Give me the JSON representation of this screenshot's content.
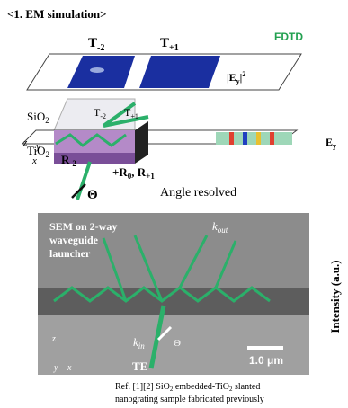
{
  "header": {
    "title": "<1. EM simulation>",
    "method": "FDTD"
  },
  "simulation": {
    "t_minus2": {
      "base": "T",
      "sub": "-2"
    },
    "t_plus1": {
      "base": "T",
      "sub": "+1"
    },
    "inner_t_minus2": {
      "base": "T",
      "sub": "-2"
    },
    "inner_t_plus1": {
      "base": "T",
      "sub": "+1"
    },
    "field_intensity": {
      "left": "|E",
      "sub": "y",
      "right": "|",
      "sup": "2"
    },
    "sio2": {
      "base": "SiO",
      "sub": "2"
    },
    "tio2": {
      "base": "TiO",
      "sub": "2"
    },
    "r_minus2": {
      "base": "R",
      "sub": "-2"
    },
    "r_out": {
      "base1": "+R",
      "sub1": "0",
      "mid": ", R",
      "sub2": "+1"
    },
    "theta": "Θ",
    "angle_note": "Angle resolved",
    "ey_label": {
      "base": "E",
      "sub": "y"
    },
    "axes": {
      "z": "z",
      "y": "y",
      "x": "x"
    }
  },
  "sem": {
    "caption": [
      "SEM on 2-way",
      "waveguide",
      "launcher"
    ],
    "k_out": {
      "base": "k",
      "sub": "out"
    },
    "k_in": {
      "base": "k",
      "sub": "in"
    },
    "theta": "Θ",
    "polarization": "TE",
    "scale_bar": "1.0 μm",
    "axes": {
      "z": "z",
      "y": "y",
      "x": "x"
    }
  },
  "side_label": "Intensity (a.u.)",
  "reference": {
    "line1": {
      "a": "Ref. [1][2] SiO",
      "s1": "2",
      "b": " embedded-TiO",
      "s2": "2",
      "c": " slanted"
    },
    "line2": "nanograting sample fabricated previously"
  }
}
